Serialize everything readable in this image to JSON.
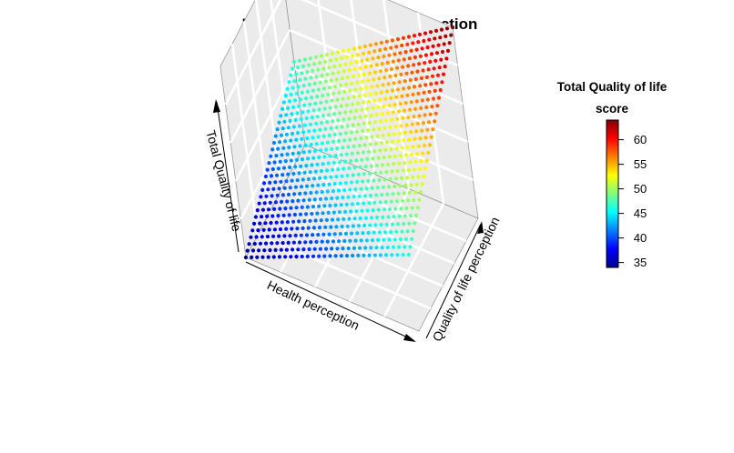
{
  "chart_data": {
    "type": "scatter3d",
    "title": "Perception-variables interaction",
    "x_label": "Health perception",
    "y_label": "Quality of life perception",
    "z_label": "Total Quality of life",
    "surface": {
      "description_model": "z = intercept + bx*x + by*y + bxy*x*y on a normalized grid x,y in [0,1]",
      "grid_size": [
        30,
        30
      ],
      "z_at_corners": {
        "x0_y0": 34,
        "x1_y0": 46,
        "x0_y1": 47,
        "x1_y1": 64
      }
    },
    "colorbar": {
      "title_line1": "Total Quality of life",
      "title_line2": "score",
      "range": [
        34,
        64
      ],
      "ticks": [
        35,
        40,
        45,
        50,
        55,
        60
      ],
      "tick_labels": [
        "35",
        "40",
        "45",
        "50",
        "55",
        "60"
      ],
      "palette": [
        "#00008F",
        "#0000FF",
        "#0080FF",
        "#00FFFF",
        "#80FF80",
        "#FFFF00",
        "#FF8000",
        "#FF0000",
        "#800000"
      ]
    },
    "panel_colors": {
      "background": "#EBEBEB",
      "grid": "#FFFFFF",
      "frame": "#999999"
    },
    "grid": true
  }
}
